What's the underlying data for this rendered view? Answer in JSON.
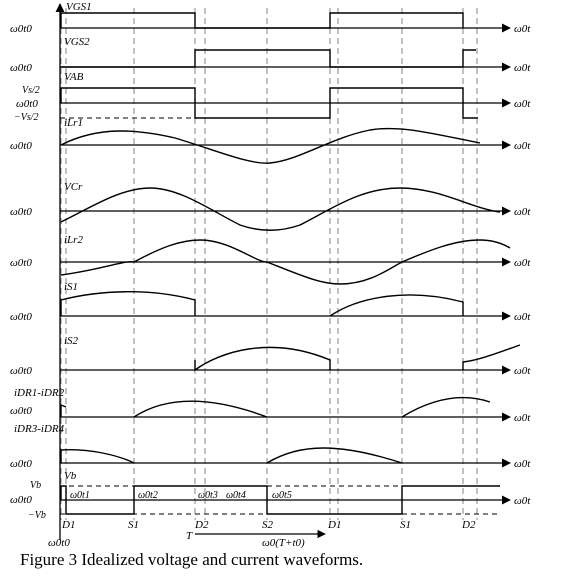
{
  "caption": "Figure 3 Idealized voltage and current waveforms.",
  "colors": {
    "ink": "#000000",
    "guide": "#9a9a9a"
  },
  "axis_time_label": "ω0t",
  "origin_label": "ω0t0",
  "channels": [
    {
      "id": "vgs1",
      "label": "VGS1"
    },
    {
      "id": "vgs2",
      "label": "VGS2"
    },
    {
      "id": "vab",
      "label": "VAB",
      "level_labels": [
        "Vs/2",
        "−Vs/2"
      ]
    },
    {
      "id": "ilr1",
      "label": "iLr1"
    },
    {
      "id": "vcr",
      "label": "VCr"
    },
    {
      "id": "ilr2",
      "label": "iLr2"
    },
    {
      "id": "is1",
      "label": "iS1"
    },
    {
      "id": "is2",
      "label": "iS2"
    },
    {
      "id": "idr12",
      "label": "iDR1-iDR2"
    },
    {
      "id": "idr34",
      "label": "iDR3-iDR4"
    },
    {
      "id": "vb",
      "label": "Vb",
      "level_labels": [
        "Vb",
        "−Vb"
      ]
    }
  ],
  "vb_time_labels": [
    "ω0t1",
    "ω0t2",
    "ω0t3",
    "ω0t4",
    "ω0t5"
  ],
  "interval_labels": [
    "D1",
    "S1",
    "D2",
    "S2",
    "D1",
    "S1",
    "D2"
  ],
  "period_labels": {
    "start": "ω0t0",
    "period": "T",
    "end": "ω0(T+t0)"
  }
}
